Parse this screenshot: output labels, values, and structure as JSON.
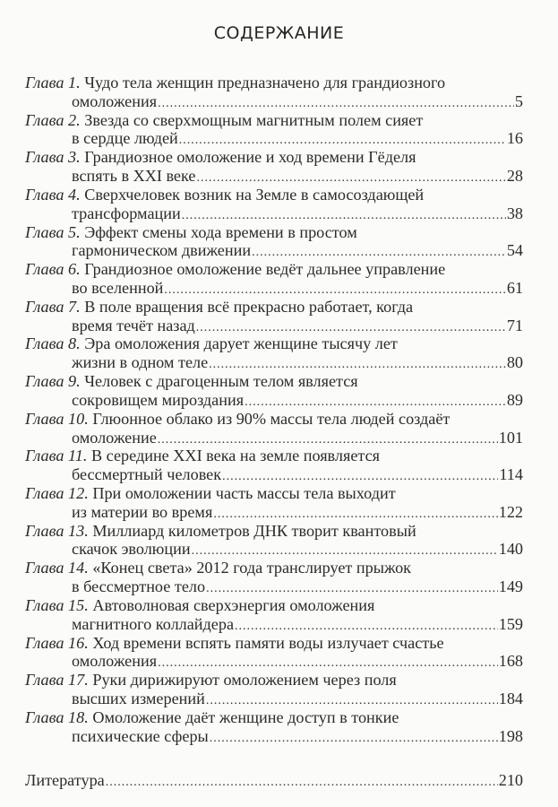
{
  "title": "СОДЕРЖАНИЕ",
  "chapter_word": "Глава",
  "entries": [
    {
      "num": "1.",
      "line1": "Чудо тела женщин предназначено для грандиозного",
      "line2": "омоложения",
      "page": "5"
    },
    {
      "num": "2.",
      "line1": "Звезда со сверхмощным магнитным полем сияет",
      "line2": "в сердце людей",
      "page": "16"
    },
    {
      "num": "3.",
      "line1": "Грандиозное омоложение и ход времени Гёделя",
      "line2": "вспять в XXI веке",
      "page": "28"
    },
    {
      "num": "4.",
      "line1": "Сверхчеловек возник на Земле в самосоздающей",
      "line2": "трансформации",
      "page": "38"
    },
    {
      "num": "5.",
      "line1": "Эффект смены хода времени в простом",
      "line2": "гармоническом движении",
      "page": "54"
    },
    {
      "num": "6.",
      "line1": "Грандиозное омоложение ведёт дальнее управление",
      "line2": "во вселенной",
      "page": "61"
    },
    {
      "num": "7.",
      "line1": "В поле вращения всё прекрасно работает, когда",
      "line2": "время течёт назад",
      "page": "71"
    },
    {
      "num": "8.",
      "line1": "Эра омоложения дарует женщине тысячу лет",
      "line2": "жизни в одном теле",
      "page": "80"
    },
    {
      "num": "9.",
      "line1": "Человек с драгоценным телом является",
      "line2": "сокровищем мироздания",
      "page": "89"
    },
    {
      "num": "10.",
      "line1": "Глюонное облако из 90% массы тела людей создаёт",
      "line2": "омоложение",
      "page": "101"
    },
    {
      "num": "11.",
      "line1": "В середине XXI века на земле появляется",
      "line2": "бессмертный человек",
      "page": "114"
    },
    {
      "num": "12.",
      "line1": "При омоложении часть массы тела выходит",
      "line2": "из материи во время",
      "page": "122"
    },
    {
      "num": "13.",
      "line1": "Миллиард километров ДНК творит квантовый",
      "line2": "скачок эволюции",
      "page": "140"
    },
    {
      "num": "14.",
      "line1": "«Конец света» 2012 года транслирует прыжок",
      "line2": "в бессмертное тело",
      "page": "149"
    },
    {
      "num": "15.",
      "line1": "Автоволновая сверхэнергия омоложения",
      "line2": "магнитного коллайдера",
      "page": "159"
    },
    {
      "num": "16.",
      "line1": "Ход времени вспять памяти воды излучает счастье",
      "line2": "омоложения",
      "page": "168"
    },
    {
      "num": "17.",
      "line1": "Руки дирижируют омоложением через поля",
      "line2": "высших измерений",
      "page": "184"
    },
    {
      "num": "18.",
      "line1": "Омоложение даёт женщине доступ в тонкие",
      "line2": "психические сферы",
      "page": "198"
    }
  ],
  "literature": {
    "label": "Литература",
    "page": "210"
  }
}
